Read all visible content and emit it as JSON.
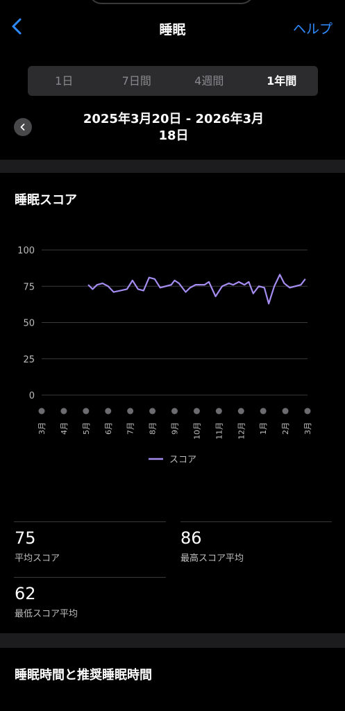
{
  "header": {
    "title": "睡眠",
    "help": "ヘルプ"
  },
  "tabs": [
    {
      "label": "1日",
      "active": false
    },
    {
      "label": "7日間",
      "active": false
    },
    {
      "label": "4週間",
      "active": false
    },
    {
      "label": "1年間",
      "active": true
    }
  ],
  "date_range": {
    "line1": "2025年3月20日 - 2026年3月",
    "line2": "18日"
  },
  "sleep_score": {
    "title": "睡眠スコア",
    "legend": "スコア",
    "accent_color": "#a48cf0"
  },
  "chart_data": {
    "type": "line",
    "title": "睡眠スコア",
    "ylim": [
      0,
      100
    ],
    "yticks": [
      0,
      25,
      50,
      75,
      100
    ],
    "xticks": [
      "3月",
      "4月",
      "5月",
      "6月",
      "7月",
      "8月",
      "9月",
      "10月",
      "11月",
      "12月",
      "1月",
      "2月",
      "3月"
    ],
    "grid": true,
    "legend_position": "bottom",
    "series": [
      {
        "name": "スコア",
        "color": "#a48cf0",
        "x": [
          2.1,
          2.3,
          2.5,
          2.75,
          3.0,
          3.25,
          3.55,
          3.85,
          4.1,
          4.35,
          4.6,
          4.85,
          5.1,
          5.35,
          5.6,
          5.85,
          6.0,
          6.2,
          6.5,
          6.7,
          6.95,
          7.15,
          7.35,
          7.55,
          7.85,
          8.15,
          8.45,
          8.65,
          8.9,
          9.15,
          9.35,
          9.55,
          9.8,
          10.05,
          10.25,
          10.5,
          10.75,
          10.95,
          11.2,
          11.45,
          11.7,
          11.9
        ],
        "values": [
          76,
          73,
          76,
          77,
          75,
          71,
          72,
          73,
          79,
          73,
          72,
          81,
          80,
          74,
          75,
          76,
          79,
          77,
          71,
          74,
          76,
          76,
          76,
          78,
          68,
          75,
          77,
          76,
          78,
          76,
          78,
          70,
          75,
          74,
          63,
          75,
          83,
          77,
          74,
          75,
          76,
          80
        ]
      }
    ]
  },
  "stats": [
    {
      "value": "75",
      "label": "平均スコア"
    },
    {
      "value": "86",
      "label": "最高スコア平均"
    },
    {
      "value": "62",
      "label": "最低スコア平均"
    }
  ],
  "next_section": {
    "title": "睡眠時間と推奨睡眠時間"
  }
}
